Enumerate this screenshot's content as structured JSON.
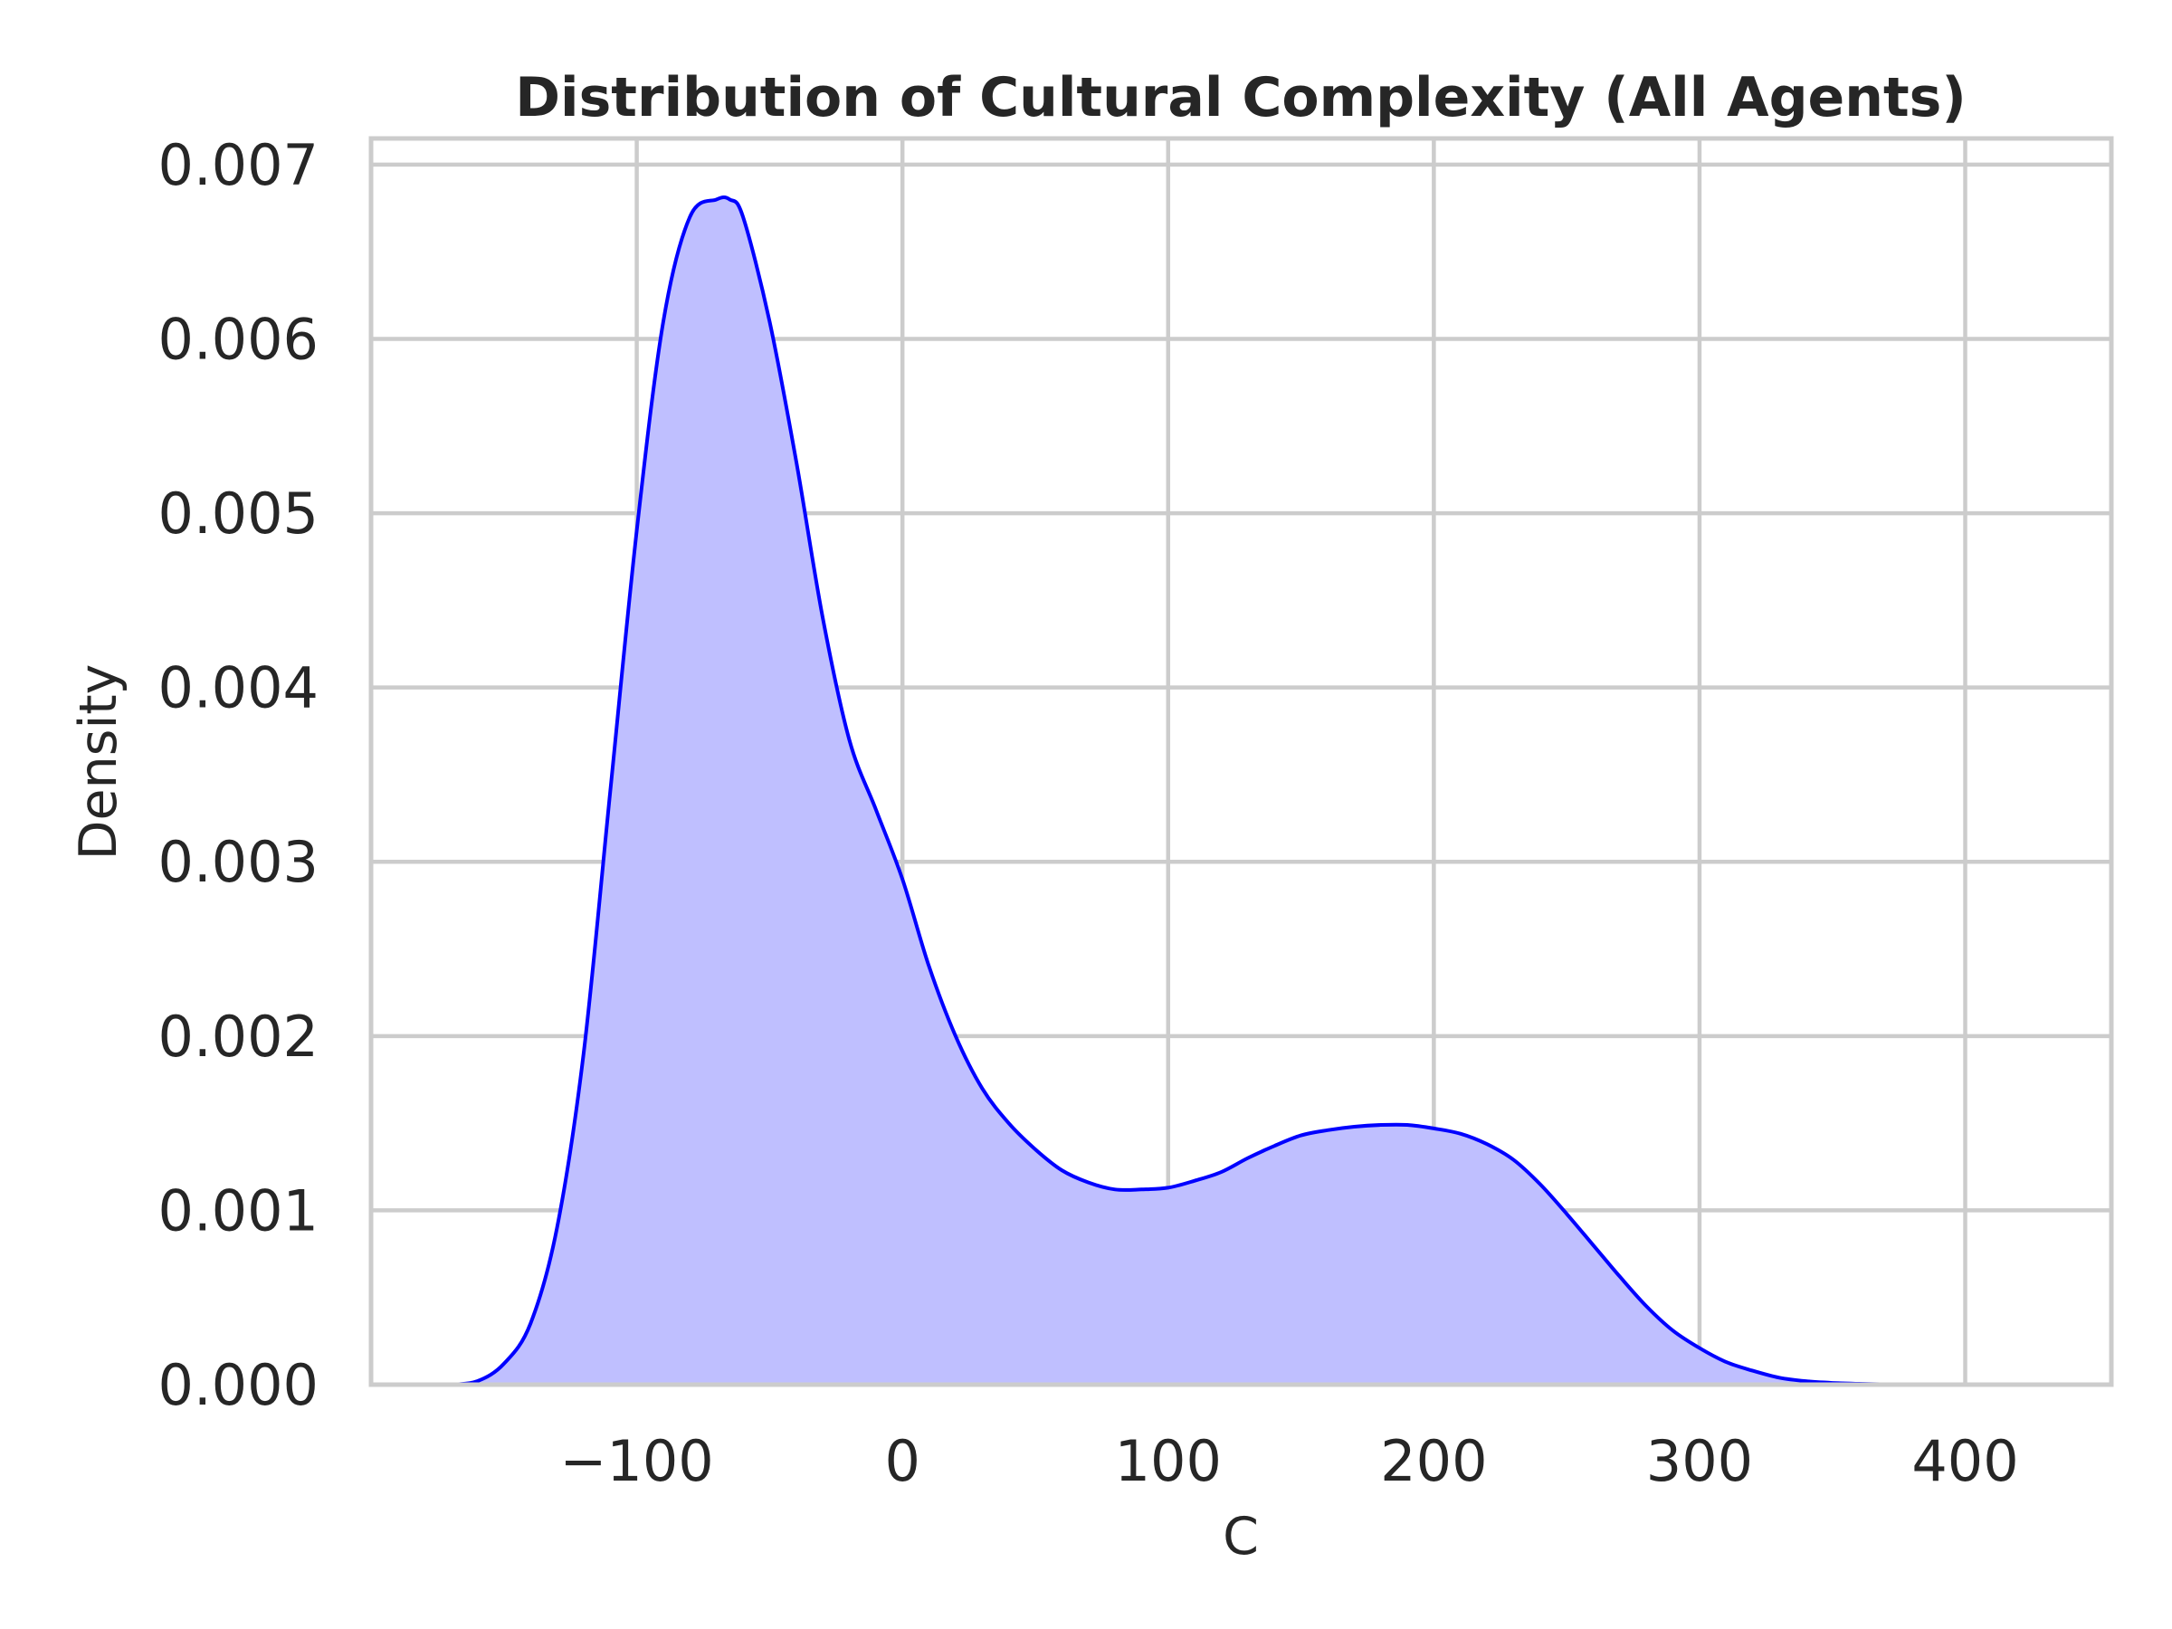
{
  "chart_data": {
    "type": "area",
    "title": "Distribution of Cultural Complexity (All Agents)",
    "xlabel": "C",
    "ylabel": "Density",
    "xlim": [
      -200,
      455
    ],
    "ylim": [
      0,
      0.00715
    ],
    "x_ticks": [
      -100,
      0,
      100,
      200,
      300,
      400
    ],
    "x_tick_labels": [
      "−100",
      "0",
      "100",
      "200",
      "300",
      "400"
    ],
    "y_ticks": [
      0,
      0.001,
      0.002,
      0.003,
      0.004,
      0.005,
      0.006,
      0.007
    ],
    "y_tick_labels": [
      "0.000",
      "0.001",
      "0.002",
      "0.003",
      "0.004",
      "0.005",
      "0.006",
      "0.007"
    ],
    "grid": true,
    "colors": {
      "line": "#0000ff",
      "fill": "#bfbfff",
      "grid": "#cccccc",
      "text": "#262626"
    },
    "series": [
      {
        "x": [
          -170,
          -160,
          -150,
          -140,
          -130,
          -120,
          -110,
          -100,
          -90,
          -80,
          -70,
          -65,
          -60,
          -50,
          -40,
          -30,
          -20,
          -10,
          0,
          10,
          20,
          30,
          40,
          50,
          60,
          70,
          80,
          90,
          100,
          110,
          120,
          130,
          140,
          150,
          160,
          170,
          180,
          190,
          200,
          210,
          220,
          230,
          240,
          250,
          260,
          270,
          280,
          290,
          300,
          310,
          320,
          330,
          340,
          350,
          360,
          370,
          380,
          390
        ],
        "y": [
          0.0,
          2e-05,
          0.00012,
          0.00035,
          0.0009,
          0.0019,
          0.0034,
          0.0049,
          0.0061,
          0.0067,
          0.0068,
          0.0068,
          0.0067,
          0.0061,
          0.0053,
          0.0044,
          0.0037,
          0.0033,
          0.0029,
          0.0024,
          0.002,
          0.0017,
          0.0015,
          0.00135,
          0.00123,
          0.00116,
          0.00112,
          0.00112,
          0.00113,
          0.00117,
          0.00122,
          0.0013,
          0.00137,
          0.00143,
          0.00146,
          0.00148,
          0.00149,
          0.00149,
          0.00147,
          0.00144,
          0.00138,
          0.00129,
          0.00115,
          0.00098,
          0.0008,
          0.00062,
          0.00045,
          0.00031,
          0.00021,
          0.00013,
          8e-05,
          4e-05,
          2e-05,
          1e-05,
          5e-06,
          2e-06,
          1e-06,
          0.0
        ]
      }
    ]
  }
}
